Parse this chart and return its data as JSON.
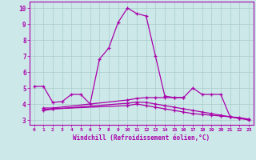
{
  "xlabel": "Windchill (Refroidissement éolien,°C)",
  "bg_color": "#cce8e8",
  "grid_color": "#aacccc",
  "line_color": "#aa00aa",
  "xlim": [
    -0.5,
    23.5
  ],
  "ylim": [
    2.7,
    10.4
  ],
  "yticks": [
    3,
    4,
    5,
    6,
    7,
    8,
    9,
    10
  ],
  "xticks": [
    0,
    1,
    2,
    3,
    4,
    5,
    6,
    7,
    8,
    9,
    10,
    11,
    12,
    13,
    14,
    15,
    16,
    17,
    18,
    19,
    20,
    21,
    22,
    23
  ],
  "series": [
    {
      "x": [
        0,
        1,
        2,
        3,
        4,
        5,
        6,
        7,
        8,
        9,
        10,
        11,
        12,
        13,
        14,
        15,
        16,
        17,
        18,
        19,
        20,
        21,
        22,
        23
      ],
      "y": [
        5.1,
        5.1,
        4.1,
        4.15,
        4.6,
        4.6,
        4.0,
        6.8,
        7.5,
        9.1,
        10.0,
        9.65,
        9.5,
        7.0,
        4.5,
        4.4,
        4.4,
        5.0,
        4.6,
        4.6,
        4.6,
        3.2,
        3.15,
        3.05
      ]
    },
    {
      "x": [
        1,
        2,
        10,
        11,
        12,
        13,
        14,
        15,
        16
      ],
      "y": [
        3.75,
        3.75,
        4.25,
        4.35,
        4.4,
        4.4,
        4.4,
        4.4,
        4.4
      ]
    },
    {
      "x": [
        1,
        2,
        10,
        11,
        12,
        13,
        14,
        15,
        16,
        17,
        18,
        19,
        20,
        21,
        22,
        23
      ],
      "y": [
        3.65,
        3.7,
        3.9,
        4.0,
        3.9,
        3.8,
        3.7,
        3.6,
        3.5,
        3.4,
        3.35,
        3.3,
        3.25,
        3.2,
        3.1,
        3.05
      ]
    },
    {
      "x": [
        1,
        2,
        10,
        11,
        12,
        13,
        14,
        15,
        16,
        17,
        18,
        19,
        20,
        21,
        22,
        23
      ],
      "y": [
        3.6,
        3.68,
        4.05,
        4.12,
        4.1,
        4.0,
        3.9,
        3.8,
        3.7,
        3.6,
        3.5,
        3.4,
        3.3,
        3.2,
        3.1,
        3.0
      ]
    }
  ]
}
